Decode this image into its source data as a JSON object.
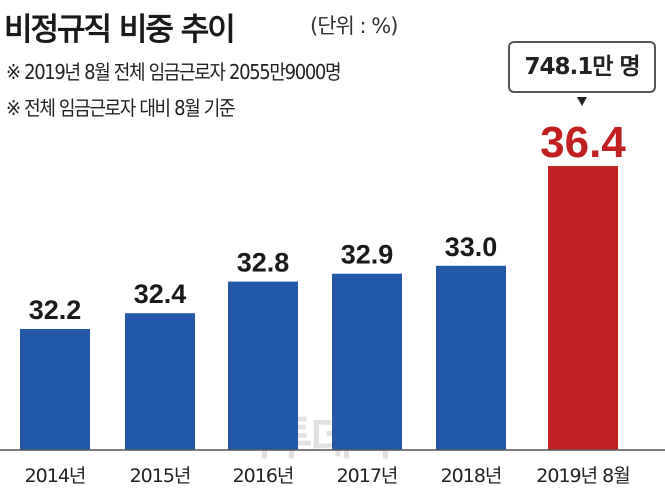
{
  "title": "비정규직 비중 추이",
  "unit": "(단위 : %)",
  "notes": [
    "※ 2019년 8월 전체 임금근로자 2055만9000명",
    "※ 전체 임금근로자 대비 8월 기준"
  ],
  "callout": "748.1만 명",
  "watermark": "이투데이",
  "colors": {
    "normal": "#2357a8",
    "highlight": "#c0201f",
    "highlight_label": "#c0201f"
  },
  "chart_data": {
    "type": "bar",
    "title": "비정규직 비중 추이",
    "xlabel": "",
    "ylabel": "%",
    "categories": [
      "2014년",
      "2015년",
      "2016년",
      "2017년",
      "2018년",
      "2019년 8월"
    ],
    "values": [
      32.2,
      32.4,
      32.8,
      32.9,
      33.0,
      36.4
    ],
    "value_labels": [
      "32.2",
      "32.4",
      "32.8",
      "32.9",
      "33.0",
      "36.4"
    ],
    "highlight_index": 5,
    "grid": false
  }
}
